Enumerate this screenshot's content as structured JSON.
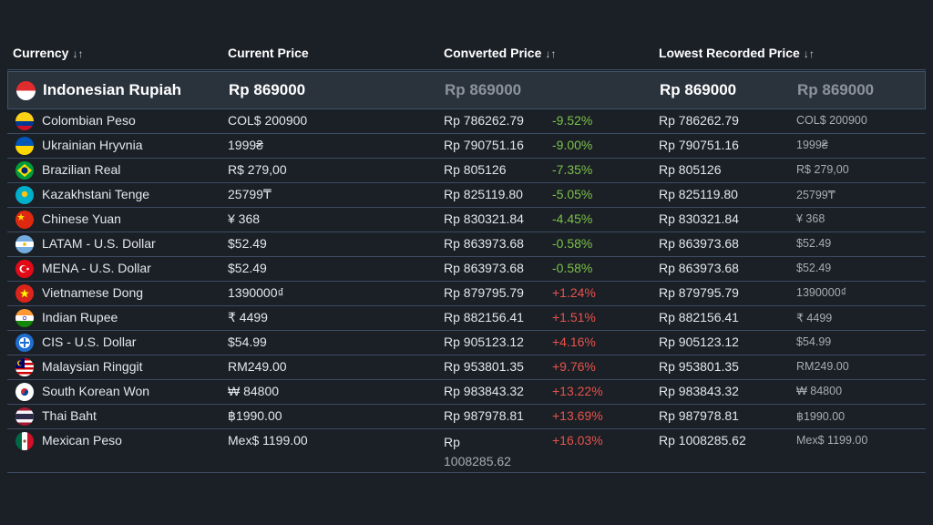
{
  "headers": {
    "currency": "Currency",
    "current_price": "Current Price",
    "converted_price": "Converted Price",
    "lowest_price": "Lowest Recorded Price",
    "sort_glyph": "↓↑"
  },
  "base": {
    "currency": "Indonesian Rupiah",
    "current": "Rp 869000",
    "converted": "Rp 869000",
    "lowest": "Rp 869000",
    "lowest_local": "Rp 869000",
    "flag": "indonesia-flag-icon"
  },
  "rows": [
    {
      "currency": "Colombian Peso",
      "current": "COL$ 200900",
      "converted": "Rp 786262.79",
      "diff": "-9.52%",
      "lowest": "Rp 786262.79",
      "lowest_local": "COL$ 200900",
      "flag": "colombia-flag-icon"
    },
    {
      "currency": "Ukrainian Hryvnia",
      "current": "1999₴",
      "converted": "Rp 790751.16",
      "diff": "-9.00%",
      "lowest": "Rp 790751.16",
      "lowest_local": "1999₴",
      "flag": "ukraine-flag-icon"
    },
    {
      "currency": "Brazilian Real",
      "current": "R$ 279,00",
      "converted": "Rp 805126",
      "diff": "-7.35%",
      "lowest": "Rp 805126",
      "lowest_local": "R$ 279,00",
      "flag": "brazil-flag-icon"
    },
    {
      "currency": "Kazakhstani Tenge",
      "current": "25799₸",
      "converted": "Rp 825119.80",
      "diff": "-5.05%",
      "lowest": "Rp 825119.80",
      "lowest_local": "25799₸",
      "flag": "kazakhstan-flag-icon"
    },
    {
      "currency": "Chinese Yuan",
      "current": "¥ 368",
      "converted": "Rp 830321.84",
      "diff": "-4.45%",
      "lowest": "Rp 830321.84",
      "lowest_local": "¥ 368",
      "flag": "china-flag-icon"
    },
    {
      "currency": "LATAM - U.S. Dollar",
      "current": "$52.49",
      "converted": "Rp 863973.68",
      "diff": "-0.58%",
      "lowest": "Rp 863973.68",
      "lowest_local": "$52.49",
      "flag": "argentina-flag-icon"
    },
    {
      "currency": "MENA - U.S. Dollar",
      "current": "$52.49",
      "converted": "Rp 863973.68",
      "diff": "-0.58%",
      "lowest": "Rp 863973.68",
      "lowest_local": "$52.49",
      "flag": "turkey-flag-icon"
    },
    {
      "currency": "Vietnamese Dong",
      "current": "1390000₫",
      "converted": "Rp 879795.79",
      "diff": "+1.24%",
      "lowest": "Rp 879795.79",
      "lowest_local": "1390000₫",
      "flag": "vietnam-flag-icon"
    },
    {
      "currency": "Indian Rupee",
      "current": "₹ 4499",
      "converted": "Rp 882156.41",
      "diff": "+1.51%",
      "lowest": "Rp 882156.41",
      "lowest_local": "₹ 4499",
      "flag": "india-flag-icon"
    },
    {
      "currency": "CIS - U.S. Dollar",
      "current": "$54.99",
      "converted": "Rp 905123.12",
      "diff": "+4.16%",
      "lowest": "Rp 905123.12",
      "lowest_local": "$54.99",
      "flag": "cis-flag-icon"
    },
    {
      "currency": "Malaysian Ringgit",
      "current": "RM249.00",
      "converted": "Rp 953801.35",
      "diff": "+9.76%",
      "lowest": "Rp 953801.35",
      "lowest_local": "RM249.00",
      "flag": "malaysia-flag-icon"
    },
    {
      "currency": "South Korean Won",
      "current": "₩ 84800",
      "converted": "Rp 983843.32",
      "diff": "+13.22%",
      "lowest": "Rp 983843.32",
      "lowest_local": "₩ 84800",
      "flag": "south-korea-flag-icon"
    },
    {
      "currency": "Thai Baht",
      "current": "฿1990.00",
      "converted": "Rp 987978.81",
      "diff": "+13.69%",
      "lowest": "Rp 987978.81",
      "lowest_local": "฿1990.00",
      "flag": "thailand-flag-icon"
    },
    {
      "currency": "Mexican Peso",
      "current": "Mex$ 1199.00",
      "converted": "Rp 1008285.62",
      "diff": "+16.03%",
      "lowest": "Rp 1008285.62",
      "lowest_local": "Mex$ 1199.00",
      "flag": "mexico-flag-icon"
    }
  ],
  "colors": {
    "background": "#1b1f26",
    "base_row": "#2a323c",
    "negative": "#7cc24a",
    "positive": "#e8534a"
  }
}
